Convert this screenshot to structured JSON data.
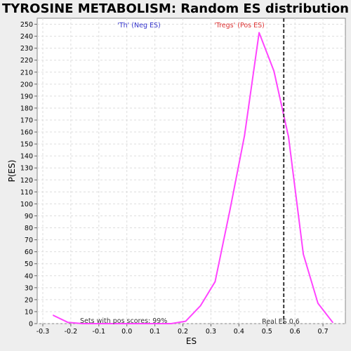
{
  "chart_data": {
    "type": "line",
    "title": "TYROSINE METABOLISM: Random ES distribution",
    "xlabel": "ES",
    "ylabel": "P(ES)",
    "xlim": [
      -0.32,
      0.78
    ],
    "ylim": [
      0,
      255
    ],
    "x_ticks": [
      -0.3,
      -0.2,
      -0.1,
      0.0,
      0.1,
      0.2,
      0.3,
      0.4,
      0.5,
      0.6,
      0.7
    ],
    "y_ticks": [
      0,
      10,
      20,
      30,
      40,
      50,
      60,
      70,
      80,
      90,
      100,
      110,
      120,
      130,
      140,
      150,
      160,
      170,
      180,
      190,
      200,
      210,
      220,
      230,
      240,
      250
    ],
    "grid": true,
    "series": [
      {
        "color": "#ff44ff",
        "x": [
          -0.263,
          -0.21,
          -0.158,
          -0.105,
          -0.053,
          0.0,
          0.053,
          0.105,
          0.158,
          0.21,
          0.263,
          0.315,
          0.368,
          0.42,
          0.472,
          0.525,
          0.577,
          0.63,
          0.682,
          0.735
        ],
        "y": [
          7,
          1,
          0,
          0,
          0,
          0,
          0,
          0,
          0,
          2,
          15,
          35,
          95,
          157,
          243,
          211,
          156,
          58,
          17,
          1
        ]
      }
    ],
    "real_es": {
      "x": 0.56,
      "label": "Real ES 0.6",
      "color": "#333333"
    },
    "annotations": {
      "neg_label": "'Th' (Neg ES)",
      "neg_color": "#3333cc",
      "pos_label": "'Tregs' (Pos ES)",
      "pos_color": "#dd3333",
      "pos_score_note": "Sets with pos scores: 99%"
    }
  }
}
